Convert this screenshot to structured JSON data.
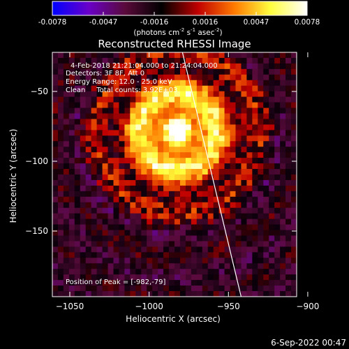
{
  "colorbar": {
    "ticks": [
      "-0.0078",
      "-0.0047",
      "-0.0016",
      "0.0016",
      "0.0047",
      "0.0078"
    ],
    "unit_main": "(photons cm",
    "unit_sup1": "-2",
    "unit_mid": " s",
    "unit_sup2": "-1",
    "unit_end": " asec",
    "unit_sup3": "-2",
    "unit_close": ")",
    "colors": [
      "#0000ff",
      "#6a00c8",
      "#5a0a3a",
      "#000000",
      "#c00000",
      "#ff7a00",
      "#ffff40",
      "#ffffff"
    ]
  },
  "chart_data": {
    "type": "heatmap",
    "title": "Reconstructed RHESSI Image",
    "xlabel": "Heliocentric X (arcsec)",
    "ylabel": "Heliocentric Y (arcsec)",
    "xlim": [
      -1061,
      -907
    ],
    "ylim": [
      -197,
      -22
    ],
    "xticks": [
      -1050,
      -1000,
      -950,
      -900
    ],
    "yticks": [
      -50,
      -100,
      -150
    ],
    "value_range": [
      -0.0078,
      0.0078
    ],
    "annotations": [
      "4-Feb-2018 21:21:04.000 to 21:24:04.000",
      "Detectors: 3F 8F, Att 0",
      "Energy Range: 12.0 - 25.0 keV",
      "Clean     Total counts: 3.92E+03"
    ],
    "peak_label": "Position of Peak = [-982,-79]",
    "peak": [
      -982,
      -79
    ],
    "limb": [
      [
        -979,
        -22
      ],
      [
        -942,
        -197
      ]
    ]
  },
  "footer": {
    "timestamp": "6-Sep-2022 00:47"
  }
}
